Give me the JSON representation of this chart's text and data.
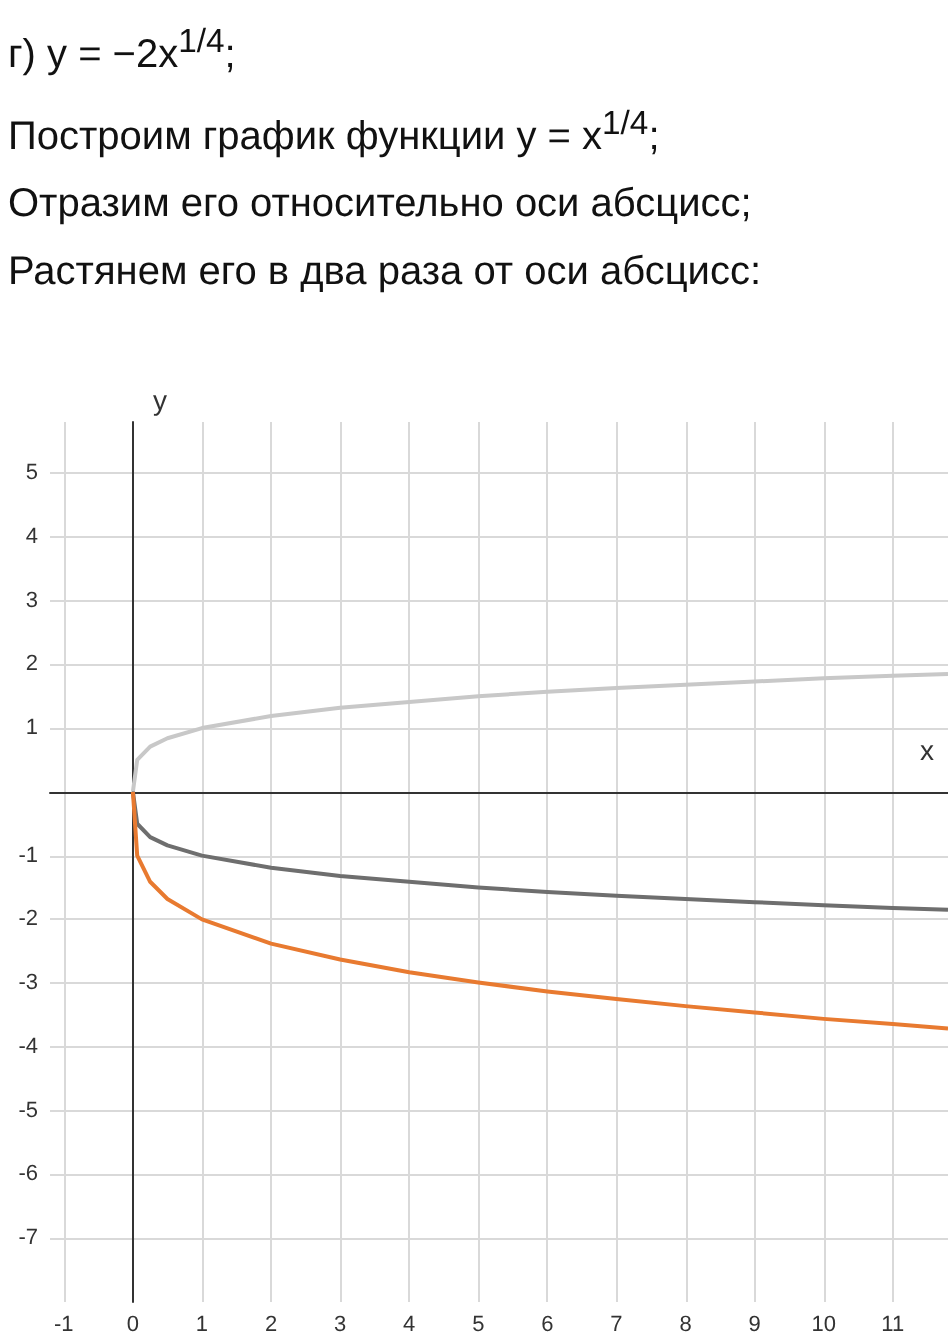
{
  "chart_data": {
    "type": "line",
    "title": "г) y = −2x$^{1/4}$;",
    "annotations": [
      "Построим график функции y = x$^{1/4}$;",
      "Отразим его относительно оси абсцисс;",
      "Растянем его в два раза от оси абсцисс:"
    ],
    "xlabel": "x",
    "ylabel": "y",
    "x": [
      0,
      0.0625,
      0.25,
      0.5,
      1,
      2,
      3,
      4,
      5,
      6,
      7,
      8,
      9,
      10,
      11,
      11.8
    ],
    "series": [
      {
        "color": "#c8c8c8",
        "values": [
          0,
          0.5,
          0.71,
          0.84,
          1,
          1.19,
          1.32,
          1.41,
          1.5,
          1.57,
          1.63,
          1.68,
          1.73,
          1.78,
          1.82,
          1.85
        ]
      },
      {
        "color": "#6e6e6e",
        "values": [
          0,
          -0.5,
          -0.71,
          -0.84,
          -1,
          -1.19,
          -1.32,
          -1.41,
          -1.5,
          -1.57,
          -1.63,
          -1.68,
          -1.73,
          -1.78,
          -1.82,
          -1.85
        ]
      },
      {
        "color": "#e87a30",
        "values": [
          0,
          -1,
          -1.41,
          -1.68,
          -2,
          -2.38,
          -2.63,
          -2.83,
          -2.99,
          -3.13,
          -3.25,
          -3.36,
          -3.46,
          -3.56,
          -3.64,
          -3.71
        ]
      }
    ],
    "xlim": [
      -1.2,
      11.8
    ],
    "ylim": [
      -8,
      5.8
    ],
    "xticks": [
      -1,
      0,
      1,
      2,
      3,
      4,
      5,
      6,
      7,
      8,
      9,
      10,
      11
    ],
    "yticks": [
      -7,
      -6,
      -5,
      -4,
      -3,
      -2,
      -1,
      {
        "value": 0,
        "label": null
      },
      1,
      2,
      3,
      4,
      5
    ],
    "grid": true,
    "marker": "none",
    "line_style": "solid"
  }
}
